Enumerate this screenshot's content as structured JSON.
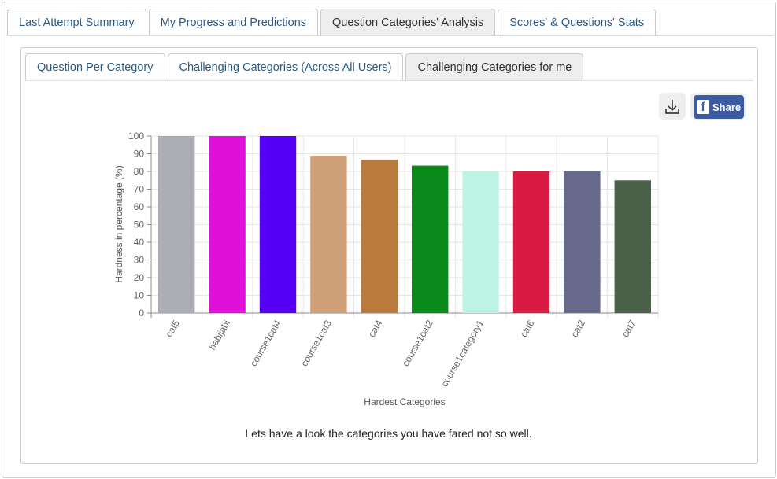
{
  "main_tabs": [
    "Last Attempt Summary",
    "My Progress and Predictions",
    "Question Categories' Analysis",
    "Scores' & Questions' Stats"
  ],
  "main_active": 2,
  "sub_tabs": [
    "Question Per Category",
    "Challenging Categories (Across All Users)",
    "Challenging Categories for me"
  ],
  "sub_active": 2,
  "toolbar": {
    "download_icon": "download-icon",
    "share_label": "Share",
    "facebook_icon": "f"
  },
  "caption": "Lets have a look the categories you have fared not so well.",
  "chart_data": {
    "type": "bar",
    "categories": [
      "cat5",
      "habijabi",
      "course1cat4",
      "course1cat3",
      "cat4",
      "course1cat2",
      "course1category1",
      "cat6",
      "cat2",
      "cat7"
    ],
    "values": [
      100,
      100,
      100,
      88.9,
      86.7,
      83.3,
      80,
      80,
      80,
      75
    ],
    "colors": [
      "#acacb4",
      "#e010d8",
      "#5500f5",
      "#cfa077",
      "#b97a3c",
      "#098a1b",
      "#bcf3e5",
      "#d91b44",
      "#686a8b",
      "#4a6048"
    ],
    "xlabel": "Hardest Categories",
    "ylabel": "Hardness in percentage (%)",
    "ylim": [
      0,
      100
    ],
    "yticks": [
      0,
      10,
      20,
      30,
      40,
      50,
      60,
      70,
      80,
      90,
      100
    ],
    "grid": true
  }
}
